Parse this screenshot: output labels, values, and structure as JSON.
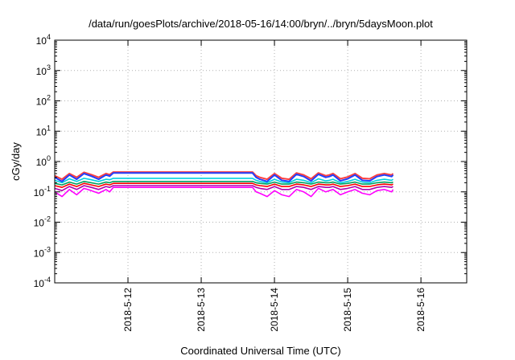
{
  "chart_data": {
    "type": "line",
    "title": "/data/run/goesPlots/archive/2018-05-16/14:00/bryn/../bryn/5daysMoon.plot",
    "xlabel": "Coordinated Universal Time (UTC)",
    "ylabel": "cGy/day",
    "y_scale": "log",
    "ylim": [
      0.0001,
      10000
    ],
    "y_tick_labels": [
      {
        "base": "10",
        "exp": "-4"
      },
      {
        "base": "10",
        "exp": "-3"
      },
      {
        "base": "10",
        "exp": "-2"
      },
      {
        "base": "10",
        "exp": "-1"
      },
      {
        "base": "10",
        "exp": "0"
      },
      {
        "base": "10",
        "exp": "1"
      },
      {
        "base": "10",
        "exp": "2"
      },
      {
        "base": "10",
        "exp": "3"
      },
      {
        "base": "10",
        "exp": "4"
      }
    ],
    "xlim": [
      "2018-05-11 00:00",
      "2018-05-16 15:00"
    ],
    "x_tick_labels": [
      "2018-5-12",
      "2018-5-13",
      "2018-5-14",
      "2018-5-15",
      "2018-5-16"
    ],
    "grid": true,
    "series": [
      {
        "color": "#ff00ff",
        "x": [
          0.0,
          0.1,
          0.2,
          0.3,
          0.4,
          0.5,
          0.6,
          0.7,
          0.75,
          0.8,
          1.5,
          2.5,
          2.7,
          2.75,
          2.8,
          2.9,
          3.0,
          3.1,
          3.2,
          3.3,
          3.4,
          3.5,
          3.6,
          3.7,
          3.75,
          3.8,
          3.9,
          4.0,
          4.1,
          4.2,
          4.3,
          4.4,
          4.5,
          4.6,
          4.62
        ],
        "y": [
          0.1,
          0.07,
          0.12,
          0.08,
          0.13,
          0.11,
          0.09,
          0.12,
          0.1,
          0.14,
          0.14,
          0.14,
          0.14,
          0.1,
          0.09,
          0.07,
          0.11,
          0.08,
          0.07,
          0.12,
          0.1,
          0.07,
          0.13,
          0.1,
          0.11,
          0.12,
          0.08,
          0.1,
          0.12,
          0.09,
          0.08,
          0.11,
          0.12,
          0.1,
          0.12
        ]
      },
      {
        "color": "#b000b0",
        "x": [
          0.0,
          0.1,
          0.2,
          0.3,
          0.4,
          0.5,
          0.6,
          0.7,
          0.75,
          0.8,
          1.5,
          2.5,
          2.7,
          2.75,
          2.8,
          2.9,
          3.0,
          3.1,
          3.2,
          3.3,
          3.4,
          3.5,
          3.6,
          3.7,
          3.75,
          3.8,
          3.9,
          4.0,
          4.1,
          4.2,
          4.3,
          4.4,
          4.5,
          4.6,
          4.62
        ],
        "y": [
          0.13,
          0.11,
          0.15,
          0.12,
          0.16,
          0.14,
          0.12,
          0.15,
          0.14,
          0.16,
          0.16,
          0.16,
          0.16,
          0.14,
          0.13,
          0.12,
          0.15,
          0.12,
          0.12,
          0.15,
          0.14,
          0.12,
          0.15,
          0.14,
          0.14,
          0.15,
          0.12,
          0.13,
          0.15,
          0.12,
          0.12,
          0.14,
          0.15,
          0.14,
          0.15
        ]
      },
      {
        "color": "#ff0000",
        "x": [
          0.0,
          0.1,
          0.2,
          0.3,
          0.4,
          0.5,
          0.6,
          0.7,
          0.75,
          0.8,
          1.5,
          2.5,
          2.7,
          2.75,
          2.8,
          2.9,
          3.0,
          3.1,
          3.2,
          3.3,
          3.4,
          3.5,
          3.6,
          3.7,
          3.75,
          3.8,
          3.9,
          4.0,
          4.1,
          4.2,
          4.3,
          4.4,
          4.5,
          4.6,
          4.62
        ],
        "y": [
          0.16,
          0.14,
          0.18,
          0.15,
          0.19,
          0.17,
          0.15,
          0.18,
          0.17,
          0.19,
          0.19,
          0.19,
          0.19,
          0.17,
          0.16,
          0.15,
          0.18,
          0.15,
          0.15,
          0.18,
          0.17,
          0.15,
          0.18,
          0.17,
          0.17,
          0.18,
          0.15,
          0.16,
          0.18,
          0.15,
          0.15,
          0.17,
          0.18,
          0.17,
          0.18
        ]
      },
      {
        "color": "#00a060",
        "x": [
          0.0,
          0.1,
          0.2,
          0.3,
          0.4,
          0.5,
          0.6,
          0.7,
          0.75,
          0.8,
          1.5,
          2.5,
          2.7,
          2.75,
          2.8,
          2.9,
          3.0,
          3.1,
          3.2,
          3.3,
          3.4,
          3.5,
          3.6,
          3.7,
          3.75,
          3.8,
          3.9,
          4.0,
          4.1,
          4.2,
          4.3,
          4.4,
          4.5,
          4.6,
          4.62
        ],
        "y": [
          0.19,
          0.17,
          0.21,
          0.18,
          0.22,
          0.2,
          0.18,
          0.21,
          0.2,
          0.22,
          0.22,
          0.22,
          0.22,
          0.2,
          0.19,
          0.18,
          0.21,
          0.18,
          0.18,
          0.21,
          0.2,
          0.18,
          0.21,
          0.2,
          0.2,
          0.21,
          0.18,
          0.19,
          0.21,
          0.18,
          0.18,
          0.2,
          0.21,
          0.2,
          0.21
        ]
      },
      {
        "color": "#00d0e0",
        "x": [
          0.0,
          0.1,
          0.2,
          0.3,
          0.4,
          0.5,
          0.6,
          0.7,
          0.75,
          0.8,
          1.5,
          2.5,
          2.7,
          2.75,
          2.8,
          2.9,
          3.0,
          3.1,
          3.2,
          3.3,
          3.4,
          3.5,
          3.6,
          3.7,
          3.75,
          3.8,
          3.9,
          4.0,
          4.1,
          4.2,
          4.3,
          4.4,
          4.5,
          4.6,
          4.62
        ],
        "y": [
          0.24,
          0.2,
          0.27,
          0.22,
          0.28,
          0.25,
          0.22,
          0.26,
          0.25,
          0.28,
          0.28,
          0.28,
          0.28,
          0.24,
          0.22,
          0.2,
          0.26,
          0.21,
          0.2,
          0.26,
          0.24,
          0.2,
          0.27,
          0.23,
          0.24,
          0.26,
          0.2,
          0.22,
          0.26,
          0.21,
          0.2,
          0.24,
          0.26,
          0.24,
          0.26
        ]
      },
      {
        "color": "#ff4040",
        "x": [
          0.0,
          0.1,
          0.2,
          0.3,
          0.4,
          0.5,
          0.6,
          0.7,
          0.75,
          0.8,
          1.5,
          2.5,
          2.7,
          2.75,
          2.8,
          2.9,
          3.0,
          3.1,
          3.2,
          3.3,
          3.4,
          3.5,
          3.6,
          3.7,
          3.75,
          3.8,
          3.9,
          4.0,
          4.1,
          4.2,
          4.3,
          4.4,
          4.5,
          4.6,
          4.62
        ],
        "y": [
          0.34,
          0.26,
          0.4,
          0.3,
          0.44,
          0.37,
          0.3,
          0.4,
          0.37,
          0.45,
          0.45,
          0.45,
          0.45,
          0.34,
          0.3,
          0.26,
          0.4,
          0.28,
          0.26,
          0.42,
          0.36,
          0.27,
          0.42,
          0.34,
          0.36,
          0.4,
          0.27,
          0.31,
          0.4,
          0.28,
          0.27,
          0.36,
          0.4,
          0.36,
          0.4
        ]
      },
      {
        "color": "#2040ff",
        "x": [
          0.0,
          0.1,
          0.2,
          0.3,
          0.4,
          0.5,
          0.6,
          0.7,
          0.75,
          0.8,
          1.5,
          2.5,
          2.7,
          2.75,
          2.8,
          2.9,
          3.0,
          3.1,
          3.2,
          3.3,
          3.4,
          3.5,
          3.6,
          3.7,
          3.75,
          3.8,
          3.9,
          4.0,
          4.1,
          4.2,
          4.3,
          4.4,
          4.5,
          4.6,
          4.62
        ],
        "y": [
          0.3,
          0.22,
          0.36,
          0.26,
          0.4,
          0.33,
          0.26,
          0.36,
          0.33,
          0.42,
          0.42,
          0.42,
          0.42,
          0.3,
          0.26,
          0.22,
          0.36,
          0.24,
          0.22,
          0.38,
          0.32,
          0.23,
          0.38,
          0.3,
          0.32,
          0.36,
          0.23,
          0.27,
          0.36,
          0.24,
          0.23,
          0.32,
          0.36,
          0.32,
          0.36
        ]
      }
    ]
  }
}
